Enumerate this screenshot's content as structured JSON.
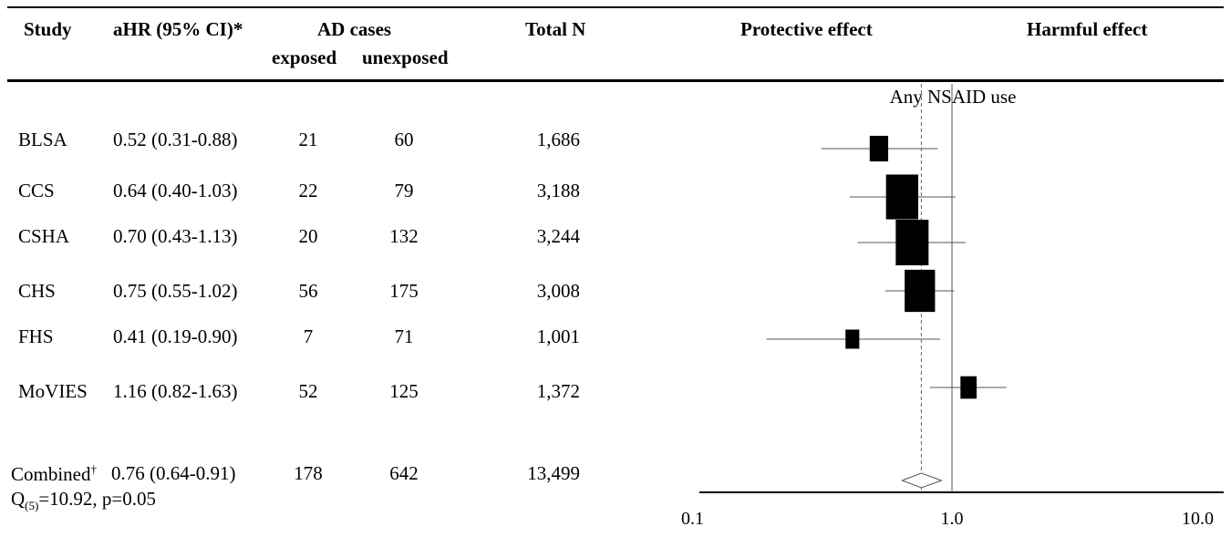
{
  "table": {
    "headers": {
      "study": "Study",
      "ahr": "aHR (95% CI)*",
      "ad_cases": "AD cases",
      "exposed": "exposed",
      "unexposed": "unexposed",
      "total_n": "Total N",
      "protective": "Protective effect",
      "harmful": "Harmful effect"
    },
    "rows": [
      {
        "study": "BLSA",
        "ahr": "0.52 (0.31-0.88)",
        "exposed": "21",
        "unexposed": "60",
        "total_n": "1,686"
      },
      {
        "study": "CCS",
        "ahr": "0.64 (0.40-1.03)",
        "exposed": "22",
        "unexposed": "79",
        "total_n": "3,188"
      },
      {
        "study": "CSHA",
        "ahr": "0.70 (0.43-1.13)",
        "exposed": "20",
        "unexposed": "132",
        "total_n": "3,244"
      },
      {
        "study": "CHS",
        "ahr": "0.75 (0.55-1.02)",
        "exposed": "56",
        "unexposed": "175",
        "total_n": "3,008"
      },
      {
        "study": "FHS",
        "ahr": "0.41 (0.19-0.90)",
        "exposed": "7",
        "unexposed": "71",
        "total_n": "1,001"
      },
      {
        "study": "MoVIES",
        "ahr": "1.16 (0.82-1.63)",
        "exposed": "52",
        "unexposed": "125",
        "total_n": "1,372"
      }
    ],
    "combined": {
      "label": "Combined",
      "label_mark": "†",
      "ahr": "0.76 (0.64-0.91)",
      "exposed": "178",
      "unexposed": "642",
      "total_n": "13,499",
      "heterogeneity_prefix": "Q",
      "heterogeneity_df": "(5)",
      "heterogeneity_rest": "=10.92, p=0.05"
    }
  },
  "chart_data": {
    "type": "forest",
    "title": "Any NSAID use",
    "x_scale": "log",
    "xlim": [
      0.1,
      10.0
    ],
    "x_ticks": [
      "0.1",
      "1.0",
      "10.0"
    ],
    "reference_line": 1.0,
    "pooled_line": 0.76,
    "studies": [
      {
        "name": "BLSA",
        "hr": 0.52,
        "lo": 0.31,
        "hi": 0.88,
        "total_n": 1686
      },
      {
        "name": "CCS",
        "hr": 0.64,
        "lo": 0.4,
        "hi": 1.03,
        "total_n": 3188
      },
      {
        "name": "CSHA",
        "hr": 0.7,
        "lo": 0.43,
        "hi": 1.13,
        "total_n": 3244
      },
      {
        "name": "CHS",
        "hr": 0.75,
        "lo": 0.55,
        "hi": 1.02,
        "total_n": 3008
      },
      {
        "name": "FHS",
        "hr": 0.41,
        "lo": 0.19,
        "hi": 0.9,
        "total_n": 1001
      },
      {
        "name": "MoVIES",
        "hr": 1.16,
        "lo": 0.82,
        "hi": 1.63,
        "total_n": 1372
      }
    ],
    "combined": {
      "hr": 0.76,
      "lo": 0.64,
      "hi": 0.91
    }
  }
}
